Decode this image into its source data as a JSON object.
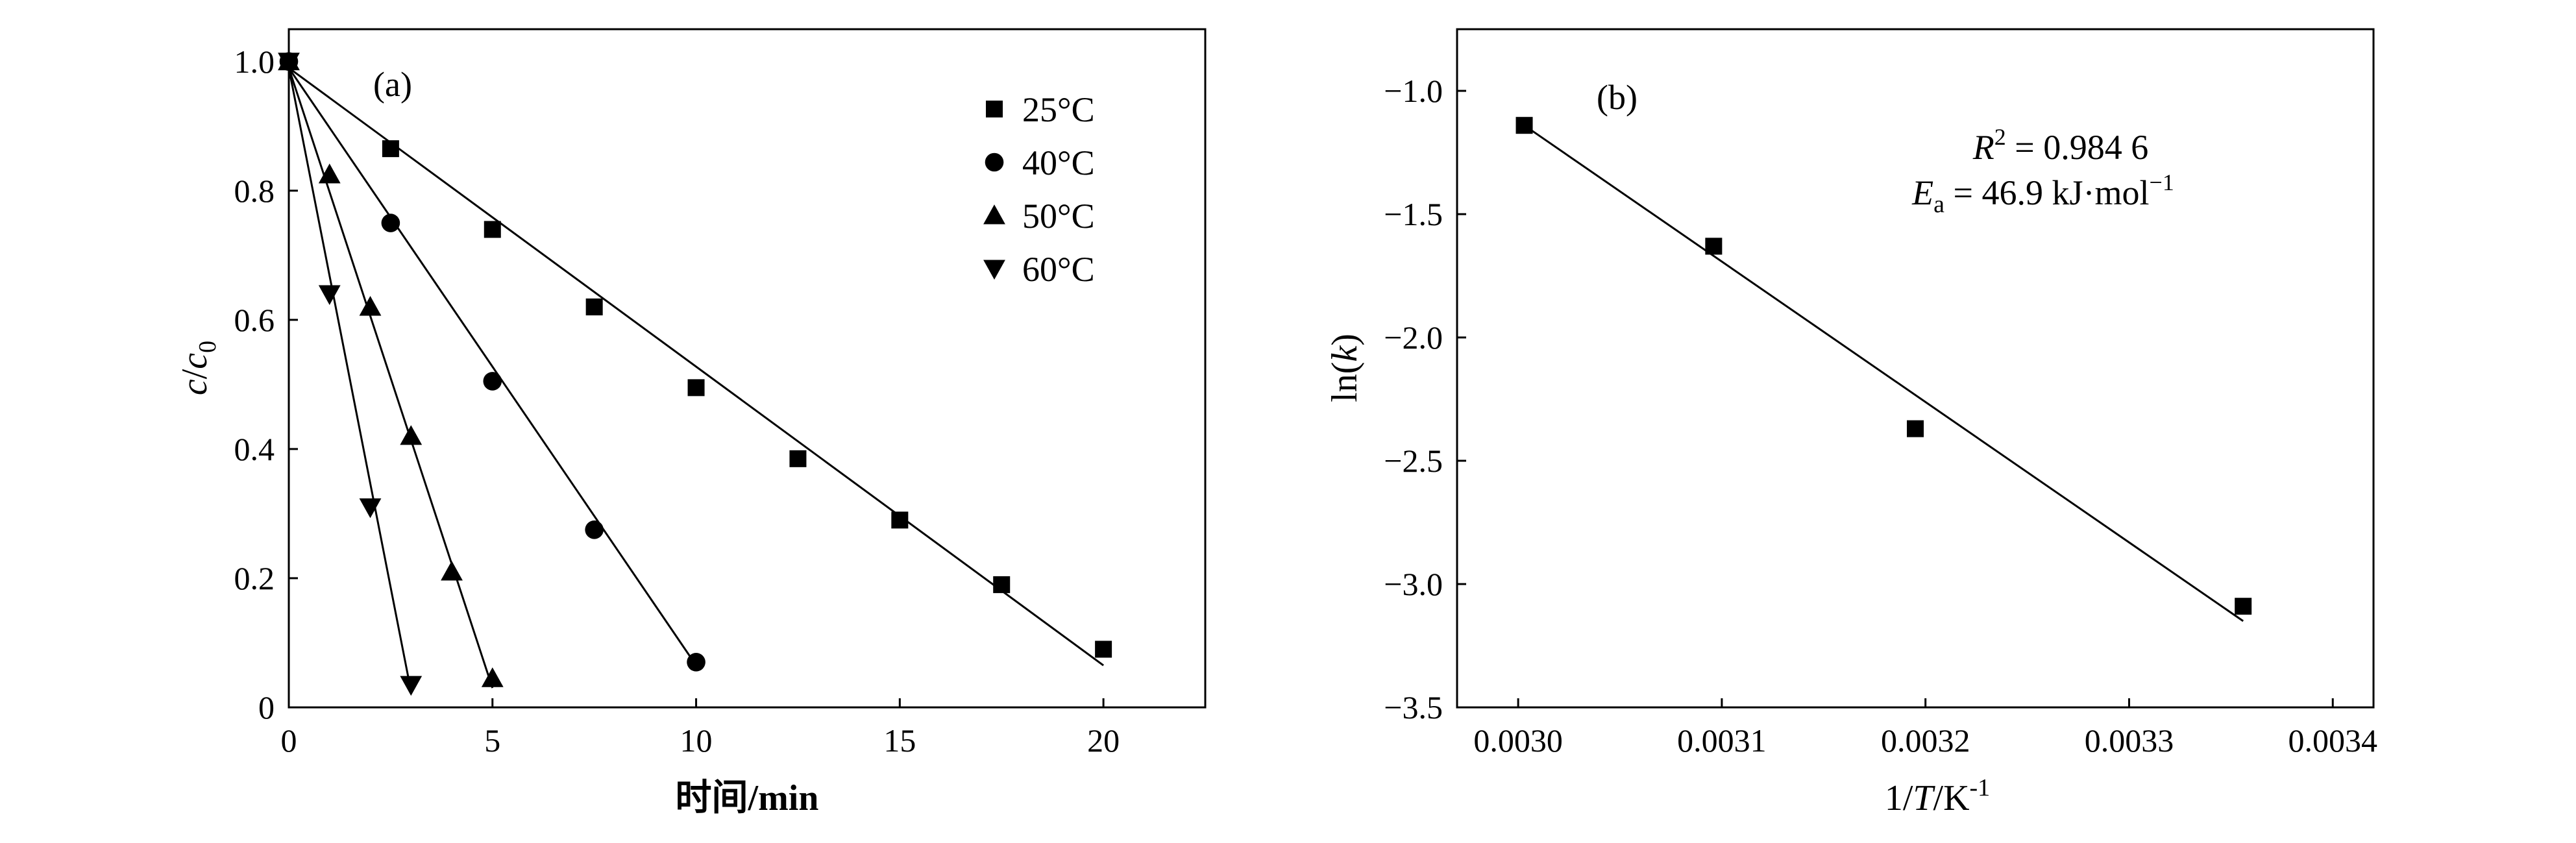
{
  "chart_data": [
    {
      "panel": "(a)",
      "type": "scatter",
      "xlabel": "时间/min",
      "ylabel": "c/c0",
      "xlim": [
        0,
        22.5
      ],
      "ylim": [
        0,
        1.05
      ],
      "xticks": [
        "0",
        "5",
        "10",
        "15",
        "20"
      ],
      "yticks": [
        "0",
        "0.2",
        "0.4",
        "0.6",
        "0.8",
        "1.0"
      ],
      "legend_position": "top-right",
      "series": [
        {
          "name": "25°C",
          "marker": "square",
          "x": [
            0,
            2.5,
            5,
            7.5,
            10,
            12.5,
            15,
            17.5,
            20
          ],
          "y": [
            1.0,
            0.865,
            0.74,
            0.62,
            0.495,
            0.385,
            0.29,
            0.19,
            0.09
          ],
          "fit": [
            [
              0,
              0.99
            ],
            [
              20,
              0.065
            ]
          ]
        },
        {
          "name": "40°C",
          "marker": "circle",
          "x": [
            0,
            2.5,
            5,
            7.5,
            10
          ],
          "y": [
            1.0,
            0.75,
            0.505,
            0.275,
            0.07
          ],
          "fit": [
            [
              0,
              0.99
            ],
            [
              10,
              0.065
            ]
          ]
        },
        {
          "name": "50°C",
          "marker": "triangle-up",
          "x": [
            0,
            1,
            2,
            3,
            4,
            5
          ],
          "y": [
            1.0,
            0.825,
            0.62,
            0.42,
            0.21,
            0.045
          ],
          "fit": [
            [
              0,
              0.99
            ],
            [
              5,
              0.03
            ]
          ]
        },
        {
          "name": "60°C",
          "marker": "triangle-down",
          "x": [
            0,
            1,
            2,
            3
          ],
          "y": [
            1.0,
            0.64,
            0.31,
            0.035
          ],
          "fit": [
            [
              0,
              0.99
            ],
            [
              3,
              0.025
            ]
          ]
        }
      ]
    },
    {
      "panel": "(b)",
      "type": "scatter",
      "xlabel": "1/T/K-1",
      "ylabel": "ln(k)",
      "xlim": [
        0.00297,
        0.00342
      ],
      "ylim": [
        -3.5,
        -0.75
      ],
      "xticks": [
        "0.0030",
        "0.0031",
        "0.0032",
        "0.0033",
        "0.0034"
      ],
      "yticks": [
        "−1.0",
        "−1.5",
        "−2.0",
        "−2.5",
        "−3.0",
        "−3.5"
      ],
      "annotation_r2": "R2 = 0.984 6",
      "annotation_ea": "Ea = 46.9 kJ·mol−1",
      "series": [
        {
          "marker": "square",
          "x": [
            0.003003,
            0.003096,
            0.003195,
            0.003356
          ],
          "y": [
            -1.14,
            -1.63,
            -2.37,
            -3.09
          ],
          "fit": [
            [
              0.003003,
              -1.14
            ],
            [
              0.003356,
              -3.15
            ]
          ]
        }
      ]
    }
  ]
}
